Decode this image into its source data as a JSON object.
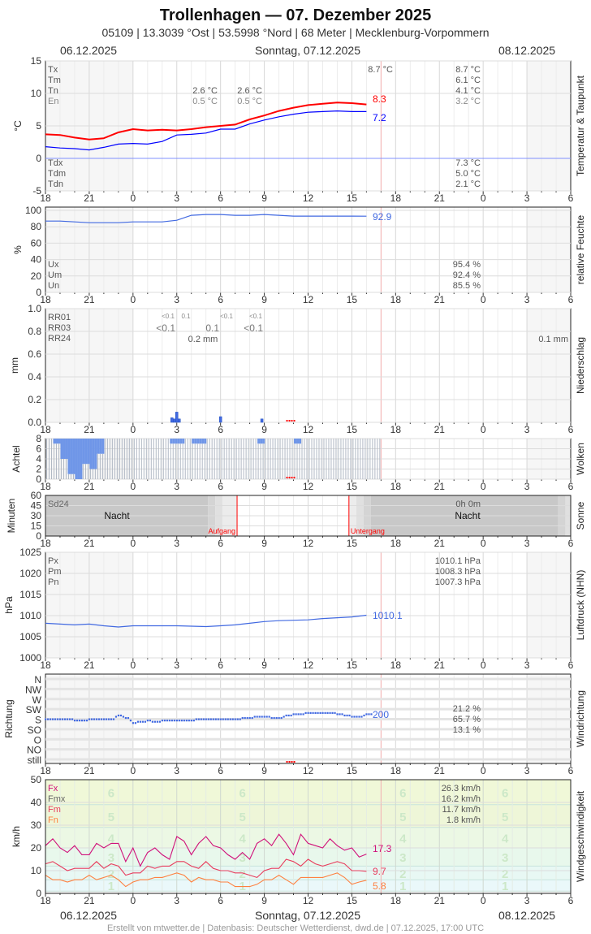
{
  "header": {
    "title": "Trollenhagen  —  07. Dezember 2025",
    "subtitle": "05109  |  13.3039 °Ost  |  53.5998 °Nord  |  68 Meter  |  Mecklenburg-Vorpommern",
    "date_left": "06.12.2025",
    "date_center": "Sonntag, 07.12.2025",
    "date_right": "08.12.2025"
  },
  "footer": {
    "date_left": "06.12.2025",
    "date_center": "Sonntag, 07.12.2025",
    "date_right": "08.12.2025",
    "credits": "Erstellt von mtwetter.de | Datenbasis: Deutscher Wetterdienst, dwd.de | 07.12.2025, 17:00 UTC"
  },
  "colors": {
    "temp": "#ff0000",
    "dew": "#0000ff",
    "blue": "#4169e1",
    "fx": "#d0107a",
    "fm": "#e83e5e",
    "fn": "#ff8040",
    "now": "#f4b0b0",
    "missing": "#ff0000"
  },
  "x_axis": {
    "start": "06.12.2025 18:00",
    "hours": 36,
    "labels": [
      "18",
      "21",
      "0",
      "3",
      "6",
      "9",
      "12",
      "15",
      "18",
      "21",
      "0",
      "3",
      "6"
    ],
    "now": "17:00"
  },
  "chart_data": {
    "temperature": {
      "type": "line",
      "title": "Temperatur & Taupunkt",
      "ylabel": "°C",
      "ylim": [
        -5,
        15
      ],
      "yticks": [
        "-5",
        "0",
        "5",
        "10",
        "15"
      ],
      "step_h": 1,
      "series": [
        {
          "name": "Temperatur",
          "values": [
            3.7,
            3.6,
            3.2,
            2.9,
            3.1,
            4.0,
            4.5,
            4.3,
            4.4,
            4.3,
            4.5,
            4.8,
            5.0,
            5.2,
            6.0,
            6.6,
            7.3,
            7.8,
            8.2,
            8.4,
            8.6,
            8.5,
            8.3
          ],
          "last_label": "8.3"
        },
        {
          "name": "Taupunkt",
          "values": [
            1.8,
            1.6,
            1.5,
            1.3,
            1.7,
            2.2,
            2.3,
            2.2,
            2.6,
            3.6,
            3.7,
            3.9,
            4.5,
            4.5,
            5.3,
            5.9,
            6.4,
            6.8,
            7.1,
            7.2,
            7.3,
            7.2,
            7.2
          ],
          "last_label": "7.2"
        }
      ],
      "stats_labels": [
        "Tx",
        "Tm",
        "Tn",
        "En"
      ],
      "stats_values_day": [
        "8.7 °C",
        "6.1 °C",
        "4.1 °C",
        "3.2 °C"
      ],
      "tx_current": "8.7 °C",
      "tn_night": [
        "2.6 °C",
        "2.6 °C"
      ],
      "en_night": [
        "0.5 °C",
        "0.5 °C"
      ],
      "dew_labels": [
        "Tdx",
        "Tdm",
        "Tdn"
      ],
      "dew_values": [
        "7.3 °C",
        "5.0 °C",
        "2.1 °C"
      ]
    },
    "humidity": {
      "type": "line",
      "title": "relative Feuchte",
      "ylabel": "%",
      "ylim": [
        0,
        100
      ],
      "yticks": [
        "0",
        "20",
        "40",
        "60",
        "80",
        "100"
      ],
      "step_h": 1,
      "values": [
        87,
        87,
        86,
        85,
        85,
        85,
        86,
        86,
        86,
        88,
        94,
        95,
        95,
        94,
        94,
        95,
        94,
        93,
        93,
        93,
        93,
        93,
        92.9
      ],
      "last_label": "92.9",
      "stats_labels": [
        "Ux",
        "Um",
        "Un"
      ],
      "stats_values": [
        "95.4 %",
        "92.4 %",
        "85.5 %"
      ]
    },
    "precipitation": {
      "type": "bar",
      "title": "Niederschlag",
      "ylabel": "mm",
      "ylim": [
        0,
        1.0
      ],
      "yticks": [
        "0.0",
        "0.2",
        "0.4",
        "0.6",
        "0.8",
        "1.0"
      ],
      "bars": [
        {
          "time": "02:40",
          "value": 0.04
        },
        {
          "time": "02:50",
          "value": 0.03
        },
        {
          "time": "03:00",
          "value": 0.09
        },
        {
          "time": "03:10",
          "value": 0.03
        },
        {
          "time": "06:00",
          "value": 0.05
        },
        {
          "time": "08:50",
          "value": 0.03
        }
      ],
      "stats_labels": [
        "RR01",
        "RR03",
        "RR24"
      ],
      "rr01": [
        "<0.1",
        "0.1",
        "<0.1",
        "<0.1"
      ],
      "rr03": [
        "<0.1",
        "0.1",
        "<0.1"
      ],
      "rr24_day": "0.2 mm",
      "rr24_next": "0.1 mm"
    },
    "clouds": {
      "type": "bar",
      "title": "Wolken",
      "ylabel": "Achtel",
      "ylim": [
        0,
        8
      ],
      "yticks": [
        "0",
        "2",
        "4",
        "6",
        "8"
      ],
      "step_h": 0.5,
      "values": [
        8,
        7,
        4,
        1,
        0,
        3,
        2,
        5,
        8,
        8,
        8,
        8,
        8,
        8,
        8,
        8,
        8,
        7,
        7,
        8,
        7,
        7,
        8,
        8,
        8,
        8,
        8,
        8,
        8,
        7,
        8,
        8,
        8,
        8,
        7,
        8,
        8,
        8,
        8,
        8,
        8,
        8,
        8,
        8,
        8,
        8
      ]
    },
    "sunshine": {
      "type": "bar",
      "title": "Sonne",
      "ylabel": "Minuten",
      "ylim": [
        0,
        60
      ],
      "yticks": [
        "0",
        "15",
        "30",
        "45",
        "60"
      ],
      "sunrise": "07:08",
      "sunset": "14:48",
      "sd24_label": "Sd24",
      "sd24_value": "0h 0m",
      "night_label": "Nacht",
      "sunrise_label": "Aufgang",
      "sunset_label": "Untergang"
    },
    "pressure": {
      "type": "line",
      "title": "Luftdruck (NHN)",
      "ylabel": "hPa",
      "ylim": [
        1000,
        1025
      ],
      "yticks": [
        "1000",
        "1005",
        "1010",
        "1015",
        "1020",
        "1025"
      ],
      "step_h": 1,
      "values": [
        1008.2,
        1008.0,
        1007.8,
        1008.0,
        1007.6,
        1007.3,
        1007.6,
        1007.6,
        1007.6,
        1007.6,
        1007.5,
        1007.4,
        1007.6,
        1007.8,
        1008.2,
        1008.6,
        1008.8,
        1008.9,
        1009.0,
        1009.3,
        1009.5,
        1009.7,
        1010.1
      ],
      "last_label": "1010.1",
      "stats_labels": [
        "Px",
        "Pm",
        "Pn"
      ],
      "stats_values": [
        "1010.1 hPa",
        "1008.3 hPa",
        "1007.3 hPa"
      ]
    },
    "wind_direction": {
      "type": "scatter",
      "title": "Windrichtung",
      "ylabel": "Richtung",
      "yticks": [
        "still",
        "NO",
        "O",
        "SO",
        "S",
        "SW",
        "W",
        "NW",
        "N"
      ],
      "step_h": 0.5,
      "values": [
        180,
        180,
        178,
        180,
        177,
        176,
        178,
        178,
        178,
        180,
        198,
        185,
        165,
        170,
        172,
        168,
        172,
        175,
        173,
        175,
        177,
        180,
        182,
        178,
        180,
        178,
        180,
        185,
        188,
        190,
        192,
        186,
        188,
        195,
        200,
        203,
        210,
        208,
        210,
        210,
        202,
        198,
        193,
        193,
        200
      ],
      "last_label": "200",
      "stats_values": [
        "21.2 %",
        "65.7 %",
        "13.1 %"
      ]
    },
    "wind_speed": {
      "type": "line",
      "title": "Windgeschwindigkeit",
      "ylabel": "km/h",
      "ylim": [
        0,
        50
      ],
      "yticks": [
        "0",
        "10",
        "20",
        "30",
        "40",
        "50"
      ],
      "beaufort_labels": [
        "1",
        "2",
        "3",
        "4",
        "5",
        "6"
      ],
      "beaufort_bounds_kmh": [
        1,
        6,
        12,
        20,
        29,
        39,
        50
      ],
      "step_h": 0.5,
      "series": [
        {
          "name": "Fx",
          "values": [
            21,
            24,
            20,
            18,
            21,
            17,
            17,
            22,
            20,
            22,
            22,
            14,
            20,
            12,
            18,
            20,
            17,
            15,
            25,
            23,
            17,
            22,
            25,
            21,
            20,
            17,
            15,
            18,
            15,
            22,
            24,
            21,
            26,
            22,
            17,
            26,
            22,
            21,
            20,
            24,
            21,
            19,
            20,
            16,
            17.3
          ],
          "last_label": "17.3"
        },
        {
          "name": "Fm",
          "values": [
            13,
            14,
            12,
            10,
            11,
            11,
            11,
            14,
            11,
            13,
            12,
            8,
            9,
            9,
            12,
            11,
            12,
            12,
            14,
            14,
            12,
            11,
            14,
            11,
            10,
            10,
            9,
            9,
            8,
            7,
            10,
            11,
            11,
            15,
            14,
            12,
            15,
            13,
            12,
            13,
            14,
            13,
            10,
            10,
            9.7
          ],
          "last_label": "9.7"
        },
        {
          "name": "Fn",
          "values": [
            8,
            6,
            6,
            5,
            6,
            6,
            8,
            6,
            7,
            8,
            6,
            3,
            5,
            6,
            6,
            7,
            7,
            8,
            9,
            8,
            5,
            7,
            6,
            6,
            5,
            5,
            3,
            3,
            3,
            4,
            6,
            6,
            8,
            6,
            4,
            7,
            7,
            7,
            7,
            8,
            9,
            7,
            4,
            5,
            5.8
          ],
          "last_label": "5.8"
        }
      ],
      "stats_labels": [
        "Fx",
        "Fmx",
        "Fm",
        "Fn"
      ],
      "stats_values": [
        "26.3 km/h",
        "16.2 km/h",
        "11.7 km/h",
        "1.8 km/h"
      ]
    }
  }
}
